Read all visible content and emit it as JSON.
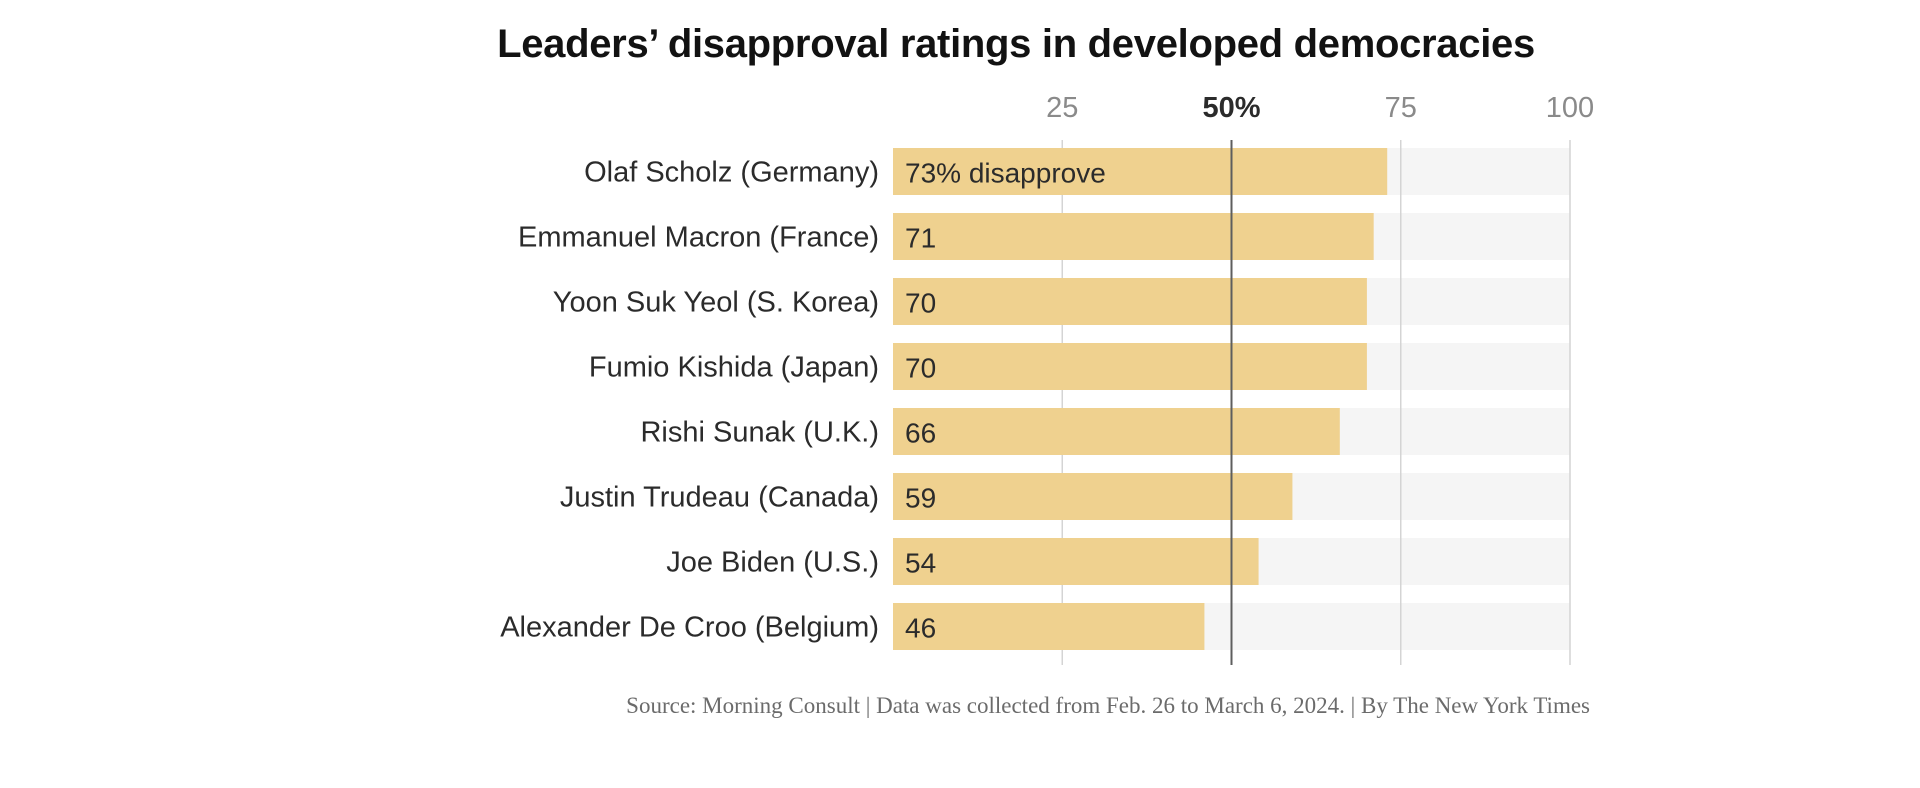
{
  "chart_data": {
    "type": "bar",
    "orientation": "horizontal",
    "title": "Leaders’ disapproval ratings in developed democracies",
    "categories": [
      "Olaf Scholz (Germany)",
      "Emmanuel Macron (France)",
      "Yoon Suk Yeol (S. Korea)",
      "Fumio Kishida (Japan)",
      "Rishi Sunak (U.K.)",
      "Justin Trudeau (Canada)",
      "Joe Biden (U.S.)",
      "Alexander De Croo (Belgium)"
    ],
    "values": [
      73,
      71,
      70,
      70,
      66,
      59,
      54,
      46
    ],
    "value_labels": [
      "73% disapprove",
      "71",
      "70",
      "70",
      "66",
      "59",
      "54",
      "46"
    ],
    "xlim": [
      0,
      100
    ],
    "x_ticks": [
      {
        "value": 25,
        "label": "25",
        "bold": false
      },
      {
        "value": 50,
        "label": "50%",
        "bold": true
      },
      {
        "value": 75,
        "label": "75",
        "bold": false
      },
      {
        "value": 100,
        "label": "100",
        "bold": false
      }
    ],
    "reference_line": 50,
    "grid": true,
    "bar_color": "#efd18f",
    "track_color": "#f5f5f5",
    "source": "Source: Morning Consult | Data was collected from Feb. 26 to March 6, 2024. | By The New York Times"
  }
}
